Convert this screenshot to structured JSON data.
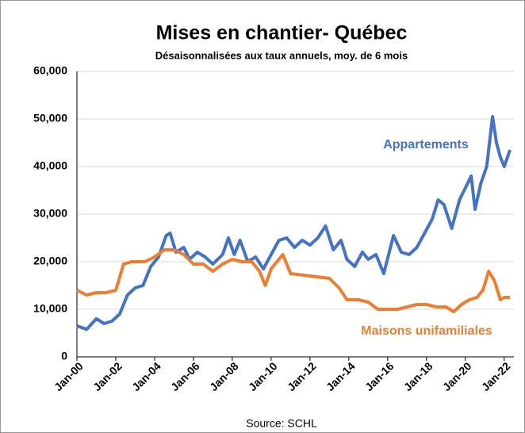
{
  "chart_data": {
    "type": "line",
    "title": "Mises en chantier- Québec",
    "subtitle": "Désaisonnalisées aux taux annuels, moy. de 6 mois",
    "source": "Source: SCHL",
    "xlim": [
      2000,
      2022.5
    ],
    "xticks": [
      {
        "value": 2000,
        "label": "Jan-00"
      },
      {
        "value": 2002,
        "label": "Jan-02"
      },
      {
        "value": 2004,
        "label": "Jan-04"
      },
      {
        "value": 2006,
        "label": "Jan-06"
      },
      {
        "value": 2008,
        "label": "Jan-08"
      },
      {
        "value": 2010,
        "label": "Jan-10"
      },
      {
        "value": 2012,
        "label": "Jan-12"
      },
      {
        "value": 2014,
        "label": "Jan-14"
      },
      {
        "value": 2016,
        "label": "Jan-16"
      },
      {
        "value": 2018,
        "label": "Jan-18"
      },
      {
        "value": 2020,
        "label": "Jan-20"
      },
      {
        "value": 2022,
        "label": "Jan-22"
      }
    ],
    "ylim": [
      0,
      60000
    ],
    "yticks": [
      0,
      {
        "value": 10000,
        "label": "10,000"
      },
      {
        "value": 20000,
        "label": "20,000"
      },
      {
        "value": 30000,
        "label": "30,000"
      },
      {
        "value": 40000,
        "label": "40,000"
      },
      {
        "value": 50000,
        "label": "50,000"
      },
      {
        "value": 60000,
        "label": "60,000"
      }
    ],
    "grid": true,
    "series": [
      {
        "name": "Appartements",
        "color": "#4472c4",
        "x": [
          2000.0,
          2000.5,
          2001.0,
          2001.4,
          2001.8,
          2002.2,
          2002.6,
          2003.0,
          2003.4,
          2003.8,
          2004.2,
          2004.6,
          2004.8,
          2005.1,
          2005.5,
          2005.8,
          2006.2,
          2006.6,
          2007.0,
          2007.5,
          2007.8,
          2008.1,
          2008.4,
          2008.8,
          2009.2,
          2009.6,
          2010.0,
          2010.4,
          2010.8,
          2011.2,
          2011.6,
          2012.0,
          2012.4,
          2012.8,
          2013.2,
          2013.6,
          2013.9,
          2014.3,
          2014.7,
          2015.0,
          2015.4,
          2015.8,
          2016.3,
          2016.7,
          2017.1,
          2017.5,
          2017.9,
          2018.3,
          2018.6,
          2018.9,
          2019.3,
          2019.7,
          2020.0,
          2020.3,
          2020.5,
          2020.8,
          2021.1,
          2021.4,
          2021.6,
          2021.8,
          2022.0,
          2022.3
        ],
        "values": [
          6500,
          5800,
          8000,
          7000,
          7500,
          9000,
          13000,
          14500,
          15000,
          19000,
          21000,
          25500,
          26000,
          22000,
          23000,
          20500,
          22000,
          21000,
          19500,
          21500,
          25000,
          21500,
          24500,
          20000,
          21000,
          18500,
          21500,
          24500,
          25000,
          23000,
          24500,
          23500,
          25000,
          27500,
          22500,
          24500,
          20500,
          19000,
          22000,
          20500,
          21500,
          17500,
          25500,
          22000,
          21500,
          23000,
          26000,
          29000,
          33000,
          32000,
          27000,
          33000,
          35500,
          38000,
          31000,
          36500,
          40000,
          50500,
          45000,
          42000,
          40000,
          43500
        ]
      },
      {
        "name": "Maisons unifamiliales",
        "color": "#ed7d31",
        "x": [
          2000.0,
          2000.5,
          2001.0,
          2001.5,
          2002.0,
          2002.4,
          2002.8,
          2003.5,
          2004.0,
          2004.5,
          2005.0,
          2005.5,
          2006.0,
          2006.5,
          2007.0,
          2007.5,
          2008.0,
          2008.5,
          2009.0,
          2009.4,
          2009.7,
          2010.0,
          2010.3,
          2010.6,
          2011.0,
          2012.0,
          2013.0,
          2013.5,
          2013.9,
          2014.5,
          2015.0,
          2015.5,
          2016.0,
          2016.5,
          2017.0,
          2017.5,
          2018.0,
          2018.5,
          2019.0,
          2019.4,
          2019.8,
          2020.2,
          2020.6,
          2020.9,
          2021.2,
          2021.5,
          2021.8,
          2022.0,
          2022.3
        ],
        "values": [
          14000,
          13000,
          13500,
          13500,
          14000,
          19500,
          20000,
          20000,
          21000,
          22500,
          22500,
          21500,
          19500,
          19500,
          18000,
          19500,
          20500,
          20000,
          20000,
          18000,
          15000,
          18500,
          20000,
          21500,
          17500,
          17000,
          16500,
          14500,
          12000,
          12000,
          11500,
          10000,
          10000,
          10000,
          10500,
          11000,
          11000,
          10500,
          10500,
          9500,
          11000,
          12000,
          12500,
          14000,
          18000,
          16000,
          12000,
          12500,
          12500
        ]
      }
    ]
  }
}
